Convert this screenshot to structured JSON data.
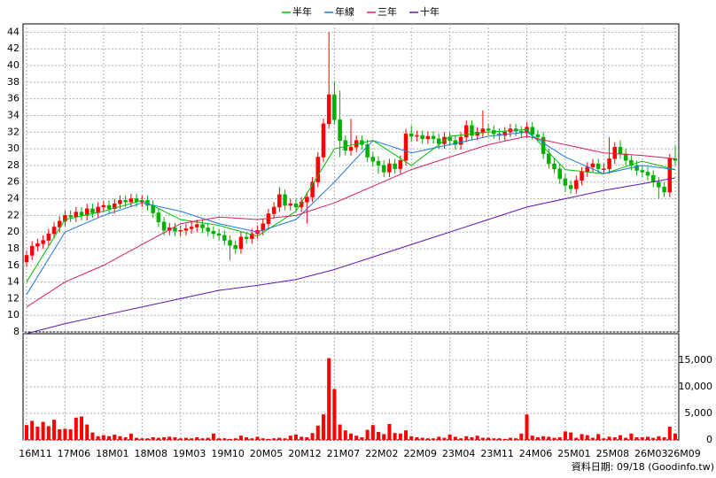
{
  "chart_data": {
    "type": "candlestick",
    "series": [
      {
        "name": "半年",
        "color": "#00c000",
        "x": [
          "16M11",
          "17M06",
          "18M01",
          "18M08",
          "19M03",
          "19M10",
          "20M05",
          "20M12",
          "21M07",
          "22M02",
          "22M09",
          "23M04",
          "23M11",
          "24M06",
          "25M01",
          "25M08",
          "26M03",
          "26M09"
        ],
        "values": [
          14,
          21.5,
          22.5,
          23.8,
          21.5,
          20.8,
          19.5,
          22.5,
          30,
          31,
          28,
          31.5,
          32,
          32.3,
          27.5,
          27,
          28.5,
          27.5
        ]
      },
      {
        "name": "年線",
        "color": "#1e78dc",
        "x": [
          "16M11",
          "17M06",
          "18M01",
          "18M08",
          "19M03",
          "19M10",
          "20M05",
          "20M12",
          "21M07",
          "22M02",
          "22M09",
          "23M04",
          "23M11",
          "24M06",
          "25M01",
          "25M08",
          "26M03",
          "26M09"
        ],
        "values": [
          12.5,
          20,
          22,
          23.5,
          22.5,
          21,
          20,
          21.5,
          26,
          31,
          29.5,
          30.5,
          31.5,
          32,
          29,
          27,
          28,
          27.5
        ]
      },
      {
        "name": "三年",
        "color": "#dc1e5a",
        "x": [
          "16M11",
          "17M06",
          "18M01",
          "18M08",
          "19M03",
          "19M10",
          "20M05",
          "20M12",
          "21M07",
          "22M02",
          "22M09",
          "23M04",
          "23M11",
          "24M06",
          "25M01",
          "25M08",
          "26M03",
          "26M09"
        ],
        "values": [
          11,
          14,
          16,
          18.5,
          21,
          21.8,
          21.5,
          22,
          23.5,
          25.5,
          27.5,
          29,
          30.5,
          31.5,
          30.5,
          29.5,
          29.2,
          28.8
        ]
      },
      {
        "name": "十年",
        "color": "#6414b4",
        "x": [
          "16M11",
          "17M06",
          "18M01",
          "18M08",
          "19M03",
          "19M10",
          "20M05",
          "20M12",
          "21M07",
          "22M02",
          "22M09",
          "23M04",
          "23M11",
          "24M06",
          "25M01",
          "25M08",
          "26M03",
          "26M09"
        ],
        "values": [
          7.8,
          9,
          10,
          11,
          12,
          13,
          13.6,
          14.3,
          15.5,
          17,
          18.5,
          20,
          21.5,
          23,
          24,
          25,
          25.8,
          26.5
        ]
      }
    ],
    "categories": [
      "16M11",
      null,
      null,
      null,
      null,
      null,
      null,
      "17M06",
      null,
      null,
      null,
      null,
      null,
      null,
      "18M01",
      null,
      null,
      null,
      null,
      null,
      null,
      "18M08",
      null,
      null,
      null,
      null,
      null,
      null,
      "19M03",
      null,
      null,
      null,
      null,
      null,
      null,
      "19M10",
      null,
      null,
      null,
      null,
      null,
      null,
      "20M05",
      null,
      null,
      null,
      null,
      null,
      null,
      "20M12",
      null,
      null,
      null,
      null,
      null,
      null,
      "21M07",
      null,
      null,
      null,
      null,
      null,
      null,
      "22M02",
      null,
      null,
      null,
      null,
      null,
      null,
      "22M09",
      null,
      null,
      null,
      null,
      null,
      null,
      "23M04",
      null,
      null,
      null,
      null,
      null,
      null,
      "23M11",
      null,
      null,
      null,
      null,
      null,
      null,
      "24M06",
      null,
      null,
      null,
      null,
      null,
      null,
      "25M01",
      null,
      null,
      null,
      null,
      null,
      null,
      "25M08",
      null,
      null,
      null,
      null,
      null,
      null,
      "26M03",
      null,
      null,
      null,
      null,
      null,
      "26M09"
    ],
    "open": [
      16.4,
      17.2,
      18.3,
      18.6,
      19.0,
      19.8,
      20.6,
      21.3,
      22.0,
      21.8,
      22.4,
      22.0,
      22.8,
      22.3,
      23.0,
      23.2,
      22.8,
      23.4,
      23.8,
      23.6,
      24.0,
      23.6,
      23.8,
      23.2,
      22.3,
      21.2,
      20.2,
      20.5,
      20.1,
      20.2,
      20.4,
      20.6,
      20.9,
      20.5,
      20.1,
      19.8,
      19.6,
      19.0,
      18.4,
      18.0,
      19.4,
      19.2,
      19.8,
      20.2,
      21.0,
      22.2,
      23.0,
      24.5,
      23.2,
      23.4,
      23.0,
      23.6,
      24.2,
      26.0,
      29.0,
      33.0,
      36.5,
      33.5,
      31.0,
      29.8,
      30.2,
      31.0,
      30.5,
      29.0,
      28.5,
      28.0,
      27.2,
      28.2,
      27.6,
      28.6,
      31.8,
      31.5,
      31.6,
      31.2,
      31.5,
      31.2,
      30.6,
      31.4,
      31.0,
      30.5,
      31.4,
      32.8,
      31.6,
      32.0,
      32.4,
      32.2,
      31.8,
      31.6,
      32.0,
      32.4,
      32.1,
      31.9,
      32.6,
      31.7,
      31.4,
      29.4,
      28.2,
      27.6,
      26.4,
      25.6,
      25.2,
      26.2,
      27.2,
      27.8,
      28.2,
      27.6,
      27.6,
      28.8,
      30.2,
      29.4,
      28.6,
      28.0,
      27.4,
      27.2,
      26.8,
      26.0,
      25.4,
      24.8,
      28.8
    ],
    "high": [
      17.8,
      18.9,
      19.2,
      19.6,
      20.4,
      21.2,
      21.9,
      22.6,
      22.6,
      23.0,
      23.0,
      23.4,
      23.4,
      23.6,
      23.8,
      23.8,
      24.0,
      24.4,
      24.4,
      24.6,
      24.6,
      24.4,
      24.4,
      23.8,
      22.9,
      21.8,
      21.1,
      21.1,
      20.8,
      21.0,
      21.2,
      21.5,
      21.5,
      21.1,
      20.7,
      20.4,
      20.2,
      19.6,
      19.0,
      20.0,
      20.0,
      20.4,
      20.8,
      21.6,
      22.8,
      23.6,
      25.4,
      25.1,
      24.0,
      24.0,
      24.2,
      24.8,
      26.6,
      29.6,
      33.6,
      44.0,
      38.0,
      37.0,
      31.6,
      33.6,
      31.6,
      31.6,
      31.1,
      29.6,
      29.1,
      28.6,
      28.8,
      28.8,
      29.2,
      32.4,
      32.8,
      32.2,
      32.2,
      32.1,
      32.1,
      31.8,
      32.0,
      32.0,
      31.6,
      32.0,
      33.4,
      33.4,
      32.6,
      34.6,
      33.0,
      32.8,
      32.4,
      32.6,
      33.0,
      33.0,
      32.7,
      33.2,
      33.2,
      32.3,
      32.0,
      30.0,
      28.8,
      28.2,
      27.0,
      26.2,
      26.8,
      27.8,
      28.4,
      28.8,
      28.8,
      28.2,
      31.4,
      30.8,
      31.0,
      30.0,
      29.2,
      28.6,
      28.0,
      27.8,
      27.4,
      26.6,
      26.0,
      29.4,
      30.4
    ],
    "low": [
      15.8,
      16.6,
      17.7,
      18.0,
      18.4,
      19.2,
      20.0,
      20.7,
      21.2,
      21.2,
      21.4,
      21.4,
      21.7,
      21.7,
      22.4,
      22.2,
      22.2,
      22.8,
      23.0,
      23.0,
      23.0,
      23.0,
      22.6,
      21.7,
      20.6,
      19.6,
      19.6,
      19.5,
      19.5,
      19.6,
      19.8,
      20.0,
      19.9,
      19.5,
      19.2,
      19.0,
      18.4,
      16.6,
      17.4,
      17.4,
      18.6,
      18.6,
      19.2,
      19.6,
      20.4,
      21.6,
      22.4,
      22.6,
      22.6,
      22.4,
      22.4,
      21.0,
      23.6,
      25.4,
      28.4,
      32.4,
      32.9,
      29.0,
      29.2,
      29.2,
      29.6,
      29.9,
      28.4,
      27.9,
      27.0,
      26.6,
      26.6,
      27.0,
      27.0,
      28.0,
      30.9,
      30.9,
      30.6,
      30.6,
      30.6,
      30.0,
      30.0,
      30.4,
      29.9,
      29.9,
      30.8,
      31.0,
      31.0,
      31.4,
      31.6,
      31.2,
      31.0,
      31.0,
      31.4,
      31.5,
      31.3,
      31.3,
      31.1,
      30.8,
      28.8,
      27.6,
      27.0,
      25.8,
      24.8,
      24.6,
      24.6,
      25.6,
      26.6,
      27.2,
      27.0,
      27.0,
      27.0,
      28.2,
      28.8,
      28.0,
      27.4,
      26.8,
      26.6,
      26.2,
      25.4,
      24.0,
      24.2,
      24.2,
      28.0
    ],
    "close": [
      17.2,
      18.3,
      18.6,
      19.0,
      19.8,
      20.6,
      21.3,
      22.0,
      21.8,
      22.4,
      22.0,
      22.8,
      22.3,
      23.0,
      23.2,
      22.8,
      23.4,
      23.8,
      23.6,
      24.0,
      23.6,
      23.8,
      23.2,
      22.3,
      21.2,
      20.2,
      20.5,
      20.1,
      20.2,
      20.4,
      20.6,
      20.9,
      20.5,
      20.1,
      19.8,
      19.6,
      19.0,
      18.4,
      18.0,
      19.4,
      19.2,
      19.8,
      20.2,
      21.0,
      22.2,
      23.0,
      24.5,
      23.2,
      23.4,
      23.0,
      23.6,
      24.2,
      26.0,
      29.0,
      33.0,
      36.5,
      33.5,
      31.0,
      29.8,
      30.2,
      31.0,
      30.5,
      29.0,
      28.5,
      28.0,
      27.2,
      28.2,
      27.6,
      28.6,
      31.8,
      31.5,
      31.6,
      31.2,
      31.5,
      31.2,
      30.6,
      31.4,
      31.0,
      30.5,
      31.4,
      32.8,
      31.6,
      32.0,
      32.4,
      32.2,
      31.8,
      31.6,
      32.0,
      32.4,
      32.1,
      31.9,
      32.6,
      31.7,
      31.4,
      29.4,
      28.2,
      27.6,
      26.4,
      25.6,
      25.2,
      26.2,
      27.2,
      27.8,
      28.2,
      27.6,
      27.6,
      28.8,
      30.2,
      29.4,
      28.6,
      28.0,
      27.4,
      27.2,
      26.8,
      26.0,
      25.4,
      24.8,
      28.8,
      28.6
    ],
    "up_color": "#ff0000",
    "down_color": "#00b000",
    "ylim": [
      8,
      45
    ],
    "yticks": [
      8,
      10,
      12,
      14,
      16,
      18,
      20,
      22,
      24,
      26,
      28,
      30,
      32,
      34,
      36,
      38,
      40,
      42,
      44
    ],
    "grid": true,
    "volume": {
      "color": "#ff0000",
      "ylim": [
        0,
        20000
      ],
      "yticks": [
        0,
        {
          "value": 5000,
          "label": "5,000"
        },
        {
          "value": 10000,
          "label": "10,000"
        },
        {
          "value": 15000,
          "label": "15,000"
        }
      ],
      "values": [
        2800,
        3600,
        2500,
        3400,
        2600,
        3800,
        2000,
        2100,
        2000,
        4200,
        4400,
        2900,
        1400,
        700,
        900,
        700,
        1000,
        700,
        500,
        1200,
        400,
        300,
        300,
        500,
        400,
        500,
        600,
        500,
        300,
        400,
        300,
        500,
        300,
        400,
        1200,
        300,
        300,
        200,
        300,
        800,
        500,
        300,
        600,
        300,
        200,
        300,
        400,
        300,
        800,
        1000,
        600,
        500,
        1300,
        2700,
        4800,
        15400,
        9600,
        2900,
        1800,
        1200,
        800,
        500,
        1900,
        2800,
        1500,
        1100,
        3000,
        1300,
        1200,
        1800,
        700,
        500,
        400,
        300,
        300,
        600,
        400,
        1000,
        600,
        300,
        700,
        500,
        800,
        400,
        400,
        300,
        300,
        200,
        400,
        300,
        1200,
        4800,
        800,
        500,
        700,
        600,
        400,
        500,
        1600,
        1400,
        400,
        1100,
        900,
        400,
        1100,
        300,
        600,
        500,
        900,
        400,
        1200,
        500,
        500,
        600,
        400,
        700,
        500,
        2500,
        1200
      ]
    },
    "footer": "資料日期: 09/18 (Goodinfo.tw)"
  }
}
